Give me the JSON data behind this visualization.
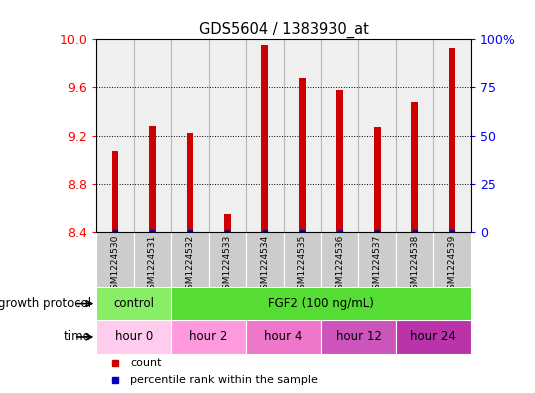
{
  "title": "GDS5604 / 1383930_at",
  "samples": [
    "GSM1224530",
    "GSM1224531",
    "GSM1224532",
    "GSM1224533",
    "GSM1224534",
    "GSM1224535",
    "GSM1224536",
    "GSM1224537",
    "GSM1224538",
    "GSM1224539"
  ],
  "bar_values": [
    9.07,
    9.28,
    9.22,
    8.55,
    9.95,
    9.68,
    9.58,
    9.27,
    9.48,
    9.93
  ],
  "ylim": [
    8.4,
    10.0
  ],
  "y_left_ticks": [
    8.4,
    8.8,
    9.2,
    9.6,
    10.0
  ],
  "y_right_ticks": [
    0,
    25,
    50,
    75,
    100
  ],
  "y_right_labels": [
    "0",
    "25",
    "50",
    "75",
    "100%"
  ],
  "bar_color": "#cc0000",
  "blue_color": "#0000bb",
  "bg_color": "#ffffff",
  "sample_bg_color": "#cccccc",
  "growth_protocol_row": {
    "label": "growth protocol",
    "groups": [
      {
        "text": "control",
        "span": [
          0,
          2
        ],
        "color": "#88ee66"
      },
      {
        "text": "FGF2 (100 ng/mL)",
        "span": [
          2,
          10
        ],
        "color": "#55dd33"
      }
    ]
  },
  "time_row": {
    "label": "time",
    "groups": [
      {
        "text": "hour 0",
        "span": [
          0,
          2
        ],
        "color": "#ffccee"
      },
      {
        "text": "hour 2",
        "span": [
          2,
          4
        ],
        "color": "#ff99dd"
      },
      {
        "text": "hour 4",
        "span": [
          4,
          6
        ],
        "color": "#ee77cc"
      },
      {
        "text": "hour 12",
        "span": [
          6,
          8
        ],
        "color": "#cc55bb"
      },
      {
        "text": "hour 24",
        "span": [
          8,
          10
        ],
        "color": "#bb33aa"
      }
    ]
  },
  "legend_items": [
    {
      "color": "#cc0000",
      "label": "count"
    },
    {
      "color": "#0000bb",
      "label": "percentile rank within the sample"
    }
  ]
}
